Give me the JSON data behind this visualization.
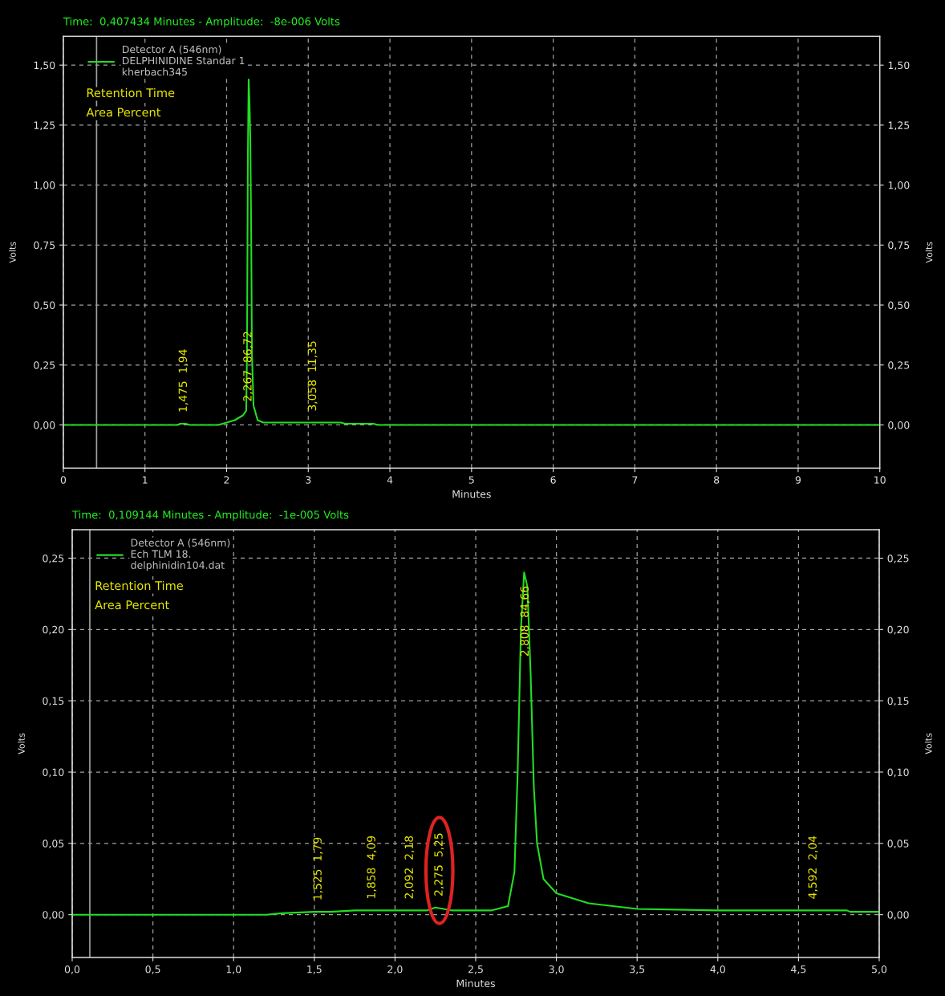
{
  "chart_data": [
    {
      "type": "line",
      "title": "Time:  0,407434 Minutes - Amplitude:  -8e-006 Volts",
      "xlabel": "Minutes",
      "ylabel": "Volts",
      "y2label": "Volts",
      "xlim": [
        0,
        10
      ],
      "xticks": [
        0,
        1,
        2,
        3,
        4,
        5,
        6,
        7,
        8,
        9,
        10
      ],
      "ylim": [
        -0.18,
        1.62
      ],
      "yticks": [
        {
          "value": 0,
          "label": "0,00"
        },
        {
          "value": 0.25,
          "label": "0,25"
        },
        {
          "value": 0.5,
          "label": "0,50"
        },
        {
          "value": 0.75,
          "label": "0,75"
        },
        {
          "value": 1.0,
          "label": "1,00"
        },
        {
          "value": 1.25,
          "label": "1,25"
        },
        {
          "value": 1.5,
          "label": "1,50"
        }
      ],
      "y2lim": [
        -0.18,
        1.62
      ],
      "y2ticks": [
        {
          "value": 0,
          "label": "0,00"
        },
        {
          "value": 0.25,
          "label": "0,25"
        },
        {
          "value": 0.5,
          "label": "0,50"
        },
        {
          "value": 0.75,
          "label": "0,75"
        },
        {
          "value": 1.0,
          "label": "1,00"
        },
        {
          "value": 1.25,
          "label": "1,25"
        },
        {
          "value": 1.5,
          "label": "1,50"
        }
      ],
      "grid": true,
      "legend": "top left",
      "marker": "none",
      "line_style": "solid",
      "ref_lines": [
        {
          "axis": "x",
          "value": 0.407434,
          "label": null,
          "color": "#a0a0a0"
        }
      ],
      "series": [
        {
          "name": "Detector A (546nm)\nDELPHINIDINE Standar 1\nkherbach345",
          "color": "#22dd22",
          "x": [
            0,
            1.4,
            1.43,
            1.5,
            1.55,
            1.9,
            1.95,
            2.05,
            2.1,
            2.2,
            2.24,
            2.25,
            2.26,
            2.27,
            2.28,
            2.29,
            2.3,
            2.31,
            2.33,
            2.38,
            2.45,
            3.0,
            3.4,
            3.45,
            3.8,
            3.85,
            10
          ],
          "values": [
            0,
            0,
            0.005,
            0.005,
            0,
            0,
            0.005,
            0.015,
            0.02,
            0.04,
            0.06,
            0.3,
            1.1,
            1.44,
            1.35,
            1.2,
            0.85,
            0.3,
            0.08,
            0.02,
            0.01,
            0.01,
            0.01,
            0.005,
            0.005,
            0,
            0
          ]
        }
      ],
      "annotations": [
        "Retention Time",
        "Area Percent",
        {
          "text": "1,475  1,94",
          "x": 1.475,
          "y": 0.005
        },
        {
          "text": "2,267  86,72",
          "x": 2.267,
          "y": 0.05
        },
        {
          "text": "3,058  11,35",
          "x": 3.058,
          "y": 0.01
        }
      ]
    },
    {
      "type": "line",
      "title": "Time:  0,109144 Minutes - Amplitude:  -1e-005 Volts",
      "xlabel": "Minutes",
      "ylabel": "Volts",
      "y2label": "Volts",
      "xlim": [
        0,
        5
      ],
      "xticks": [
        {
          "value": 0,
          "label": "0,0"
        },
        {
          "value": 0.5,
          "label": "0,5"
        },
        {
          "value": 1.0,
          "label": "1,0"
        },
        {
          "value": 1.5,
          "label": "1,5"
        },
        {
          "value": 2.0,
          "label": "2,0"
        },
        {
          "value": 2.5,
          "label": "2,5"
        },
        {
          "value": 3.0,
          "label": "3,0"
        },
        {
          "value": 3.5,
          "label": "3,5"
        },
        {
          "value": 4.0,
          "label": "4,0"
        },
        {
          "value": 4.5,
          "label": "4,5"
        },
        {
          "value": 5.0,
          "label": "5,0"
        }
      ],
      "ylim": [
        -0.03,
        0.27
      ],
      "yticks": [
        {
          "value": 0,
          "label": "0,00"
        },
        {
          "value": 0.05,
          "label": "0,05"
        },
        {
          "value": 0.1,
          "label": "0,10"
        },
        {
          "value": 0.15,
          "label": "0,15"
        },
        {
          "value": 0.2,
          "label": "0,20"
        },
        {
          "value": 0.25,
          "label": "0,25"
        }
      ],
      "y2lim": [
        -0.03,
        0.27
      ],
      "y2ticks": [
        {
          "value": 0,
          "label": "0,00"
        },
        {
          "value": 0.05,
          "label": "0,05"
        },
        {
          "value": 0.1,
          "label": "0,10"
        },
        {
          "value": 0.15,
          "label": "0,15"
        },
        {
          "value": 0.2,
          "label": "0,20"
        },
        {
          "value": 0.25,
          "label": "0,25"
        }
      ],
      "grid": true,
      "legend": "top left",
      "marker": "none",
      "line_style": "solid",
      "ref_lines": [
        {
          "axis": "x",
          "value": 0.109144,
          "label": null,
          "color": "#a0a0a0"
        }
      ],
      "series": [
        {
          "name": "Detector A (546nm)\nEch TLM 18.\ndelphinidin104.dat",
          "color": "#22dd22",
          "x": [
            0,
            1.2,
            1.3,
            1.5,
            1.6,
            1.75,
            2.2,
            2.25,
            2.3,
            2.35,
            2.6,
            2.7,
            2.74,
            2.76,
            2.78,
            2.8,
            2.82,
            2.84,
            2.86,
            2.88,
            2.92,
            3.0,
            3.2,
            3.5,
            4.0,
            4.8,
            4.82,
            5.0
          ],
          "values": [
            0,
            0,
            0.001,
            0.002,
            0.002,
            0.003,
            0.003,
            0.005,
            0.004,
            0.003,
            0.003,
            0.006,
            0.03,
            0.1,
            0.2,
            0.24,
            0.23,
            0.17,
            0.09,
            0.05,
            0.025,
            0.015,
            0.008,
            0.004,
            0.003,
            0.003,
            0.002,
            0.002
          ]
        }
      ],
      "annotations": [
        "Retention Time",
        "Area Percent",
        {
          "text": "1,525  1,79",
          "x": 1.525,
          "y": 0.002
        },
        {
          "text": "1,858  4,09",
          "x": 1.858,
          "y": 0.003
        },
        {
          "text": "2,092  2,18",
          "x": 2.092,
          "y": 0.003
        },
        {
          "text": "2,275  5,25",
          "x": 2.275,
          "y": 0.005
        },
        {
          "text": "2,808  84,66",
          "x": 2.808,
          "y": 0.24
        },
        {
          "text": "4,592  2,04",
          "x": 4.592,
          "y": 0.003
        }
      ]
    }
  ]
}
